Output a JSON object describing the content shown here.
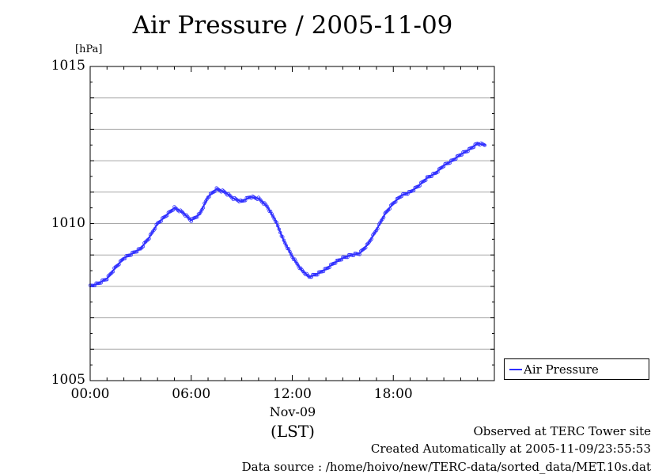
{
  "chart_data": {
    "type": "line",
    "title": "Air Pressure / 2005-11-09",
    "ylabel": "[hPa]",
    "xlabel": "(LST)",
    "x_date_label": "Nov-09",
    "ylim": [
      1005,
      1015
    ],
    "xlim_hours": [
      0,
      24
    ],
    "y_ticks": [
      "1005",
      "1010",
      "1015"
    ],
    "x_ticks": [
      {
        "hour": 0,
        "label": "00:00"
      },
      {
        "hour": 6,
        "label": "06:00"
      },
      {
        "hour": 12,
        "label": "12:00"
      },
      {
        "hour": 18,
        "label": "18:00"
      }
    ],
    "grid": true,
    "legend_position": "right",
    "series": [
      {
        "name": "Air Pressure",
        "color": "#3030ff",
        "x_hours": [
          0.0,
          0.5,
          1.0,
          1.5,
          2.0,
          2.5,
          3.0,
          3.5,
          4.0,
          4.5,
          5.0,
          5.5,
          6.0,
          6.5,
          7.0,
          7.5,
          8.0,
          8.5,
          9.0,
          9.5,
          10.0,
          10.5,
          11.0,
          11.5,
          12.0,
          12.5,
          13.0,
          13.5,
          14.0,
          14.5,
          15.0,
          15.5,
          16.0,
          16.5,
          17.0,
          17.5,
          18.0,
          18.5,
          19.0,
          19.5,
          20.0,
          20.5,
          21.0,
          21.5,
          22.0,
          22.5,
          23.0,
          23.5
        ],
        "y_hpa": [
          1008.0,
          1008.1,
          1008.25,
          1008.6,
          1008.9,
          1009.05,
          1009.2,
          1009.55,
          1010.0,
          1010.25,
          1010.5,
          1010.35,
          1010.1,
          1010.3,
          1010.85,
          1011.1,
          1011.0,
          1010.8,
          1010.7,
          1010.85,
          1010.8,
          1010.55,
          1010.1,
          1009.45,
          1008.95,
          1008.55,
          1008.3,
          1008.4,
          1008.55,
          1008.75,
          1008.9,
          1009.0,
          1009.05,
          1009.35,
          1009.8,
          1010.3,
          1010.65,
          1010.9,
          1011.0,
          1011.2,
          1011.45,
          1011.6,
          1011.85,
          1012.0,
          1012.2,
          1012.35,
          1012.55,
          1012.5
        ]
      }
    ]
  },
  "footer": {
    "observed": "Observed at TERC Tower site",
    "created": "Created Automatically at 2005-11-09/23:55:53",
    "source": "Data source : /home/hoivo/new/TERC-data/sorted_data/MET.10s.dat"
  }
}
